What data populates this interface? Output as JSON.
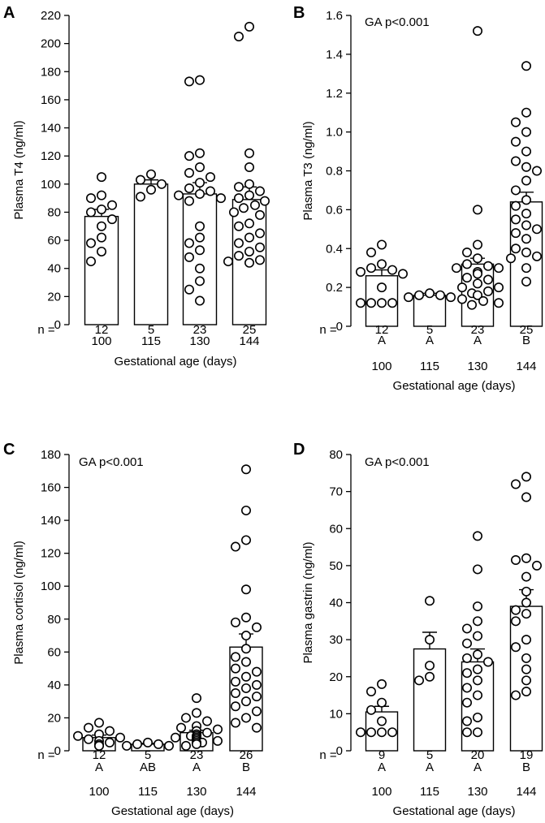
{
  "chart_data": [
    {
      "type": "bar",
      "panel_label": "A",
      "title": "",
      "annotation": "",
      "ylabel": "Plasma T4 (ng/ml)",
      "xlabel": "Gestational age (days)",
      "ylim": [
        0,
        220
      ],
      "yticks": [
        0,
        20,
        40,
        60,
        80,
        100,
        120,
        140,
        160,
        180,
        200,
        220
      ],
      "n_label": "n =",
      "categories": [
        "100",
        "115",
        "130",
        "144"
      ],
      "n": [
        "12",
        "5",
        "23",
        "25"
      ],
      "letters": [],
      "means": [
        77,
        100,
        93,
        89
      ],
      "sem": [
        5,
        3,
        8,
        9
      ],
      "points": [
        [
          105,
          92,
          90,
          85,
          82,
          80,
          75,
          70,
          62,
          58,
          52,
          45
        ],
        [
          107,
          103,
          100,
          96,
          91
        ],
        [
          174,
          173,
          122,
          120,
          112,
          108,
          105,
          101,
          97,
          95,
          93,
          92,
          90,
          88,
          70,
          62,
          58,
          53,
          48,
          40,
          31,
          25,
          17
        ],
        [
          212,
          205,
          122,
          112,
          100,
          98,
          95,
          92,
          90,
          88,
          85,
          83,
          80,
          78,
          72,
          70,
          65,
          62,
          58,
          55,
          52,
          49,
          46,
          45,
          44
        ]
      ]
    },
    {
      "type": "bar",
      "panel_label": "B",
      "title": "",
      "annotation": "GA p<0.001",
      "ylabel": "Plasma T3 (ng/ml)",
      "xlabel": "Gestational age (days)",
      "ylim": [
        0,
        1.6
      ],
      "yticks": [
        "0",
        "0.2",
        "0.4",
        "0.6",
        "0.8",
        "1.0",
        "1.2",
        "1.4",
        "1.6"
      ],
      "n_label": "n =",
      "categories": [
        "100",
        "115",
        "130",
        "144"
      ],
      "n": [
        "12",
        "5",
        "23",
        "25"
      ],
      "letters": [
        "A",
        "A",
        "A",
        "B"
      ],
      "means": [
        0.26,
        0.16,
        0.32,
        0.64
      ],
      "sem": [
        0.03,
        0.01,
        0.03,
        0.05
      ],
      "points": [
        [
          0.42,
          0.38,
          0.32,
          0.3,
          0.29,
          0.28,
          0.27,
          0.2,
          0.12,
          0.12,
          0.12,
          0.12
        ],
        [
          0.17,
          0.16,
          0.16,
          0.15,
          0.15
        ],
        [
          1.52,
          0.6,
          0.42,
          0.38,
          0.35,
          0.32,
          0.31,
          0.3,
          0.3,
          0.28,
          0.27,
          0.25,
          0.24,
          0.22,
          0.2,
          0.2,
          0.18,
          0.17,
          0.16,
          0.14,
          0.13,
          0.12,
          0.11
        ],
        [
          1.34,
          1.1,
          1.05,
          1.0,
          0.95,
          0.9,
          0.85,
          0.82,
          0.8,
          0.75,
          0.7,
          0.65,
          0.62,
          0.58,
          0.55,
          0.52,
          0.5,
          0.48,
          0.45,
          0.4,
          0.38,
          0.36,
          0.35,
          0.3,
          0.23
        ]
      ]
    },
    {
      "type": "bar",
      "panel_label": "C",
      "title": "",
      "annotation": "GA p<0.001",
      "ylabel": "Plasma cortisol (ng/ml)",
      "xlabel": "Gestational age (days)",
      "ylim": [
        0,
        180
      ],
      "yticks": [
        0,
        20,
        40,
        60,
        80,
        100,
        120,
        140,
        160,
        180
      ],
      "n_label": "n =",
      "categories": [
        "100",
        "115",
        "130",
        "144"
      ],
      "n": [
        "12",
        "5",
        "23",
        "26"
      ],
      "letters": [
        "A",
        "AB",
        "A",
        "B"
      ],
      "means": [
        8,
        4,
        11,
        63
      ],
      "sem": [
        1.5,
        0.5,
        1.5,
        8
      ],
      "points": [
        [
          17,
          14,
          12,
          10,
          9,
          8,
          7,
          6,
          5,
          4,
          3,
          3
        ],
        [
          5,
          4,
          4,
          3,
          3
        ],
        [
          32,
          23,
          20,
          18,
          15,
          14,
          13,
          12,
          12,
          11,
          10,
          10,
          9,
          9,
          8,
          8,
          7,
          6,
          6,
          5,
          5,
          4,
          3
        ],
        [
          171,
          146,
          128,
          124,
          98,
          81,
          78,
          75,
          70,
          62,
          57,
          54,
          50,
          48,
          45,
          42,
          40,
          38,
          35,
          33,
          30,
          27,
          24,
          20,
          17,
          14
        ]
      ]
    },
    {
      "type": "bar",
      "panel_label": "D",
      "title": "",
      "annotation": "GA p<0.001",
      "ylabel": "Plasma gastrin (ng/ml)",
      "xlabel": "Gestational age (days)",
      "ylim": [
        0,
        80
      ],
      "yticks": [
        0,
        10,
        20,
        30,
        40,
        50,
        60,
        70,
        80
      ],
      "n_label": "n =",
      "categories": [
        "100",
        "115",
        "130",
        "144"
      ],
      "n": [
        "9",
        "5",
        "20",
        "19"
      ],
      "letters": [
        "A",
        "A",
        "A",
        "B"
      ],
      "means": [
        10.5,
        27.5,
        24,
        39
      ],
      "sem": [
        1.5,
        4.5,
        3.5,
        4.5
      ],
      "points": [
        [
          18,
          16,
          13,
          11,
          8,
          5,
          5,
          5,
          5
        ],
        [
          40.5,
          30,
          23,
          20,
          19
        ],
        [
          58,
          49,
          39,
          35,
          33,
          31,
          29,
          26,
          25,
          24,
          22,
          21,
          19,
          17,
          15,
          13,
          9,
          8,
          5,
          5
        ],
        [
          74,
          72,
          68.5,
          52,
          51.5,
          50,
          47,
          43,
          40,
          38,
          37,
          35,
          30,
          28,
          25,
          22,
          19,
          16,
          15
        ]
      ]
    }
  ]
}
